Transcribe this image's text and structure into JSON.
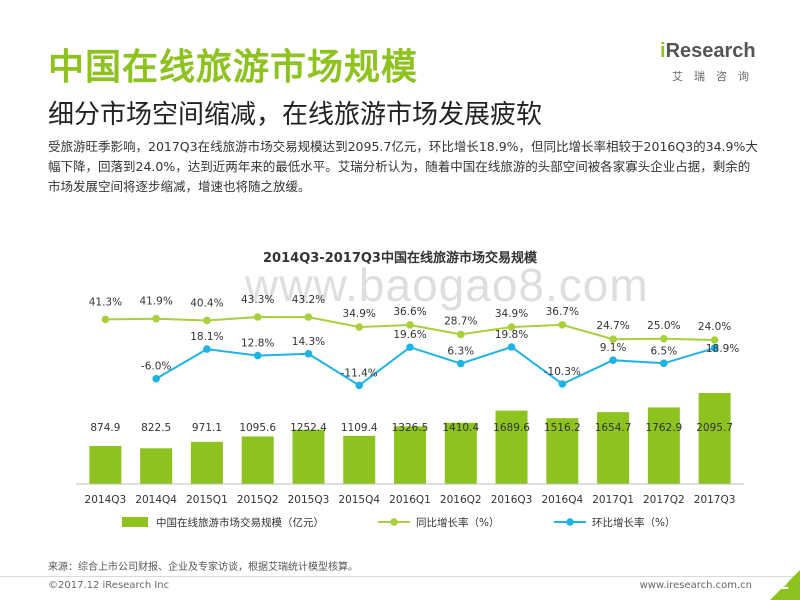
{
  "header": {
    "title": "中国在线旅游市场规模",
    "subtitle": "细分市场空间缩减，在线旅游市场发展疲软"
  },
  "body_text": "受旅游旺季影响，2017Q3在线旅游市场交易规模达到2095.7亿元，环比增长18.9%，但同比增长率相较于2016Q3的34.9%大幅下降，回落到24.0%，达到近两年来的最低水平。艾瑞分析认为，随着中国在线旅游的头部空间被各家寡头企业占据，剩余的市场发展空间将逐步缩减，增速也将随之放缓。",
  "logo": {
    "i": "i",
    "rest": "Research",
    "cn": "艾瑞咨询"
  },
  "watermark": "www.baogao8.com",
  "footer": {
    "source": "来源：综合上市公司财报、企业及专家访谈，根据艾瑞统计模型核算。",
    "copyright": "©2017.12 iResearch Inc",
    "website": "www.iresearch.com.cn",
    "page": "2"
  },
  "colors": {
    "bar": "#8dc21f",
    "yoy": "#a9cf3b",
    "qoq": "#1fb3e4",
    "brand": "#8dc21f"
  },
  "chart_data": {
    "type": "bar",
    "title": "2014Q3-2017Q3中国在线旅游市场交易规模",
    "categories": [
      "2014Q3",
      "2014Q4",
      "2015Q1",
      "2015Q2",
      "2015Q3",
      "2015Q4",
      "2016Q1",
      "2016Q2",
      "2016Q3",
      "2016Q4",
      "2017Q1",
      "2017Q2",
      "2017Q3"
    ],
    "series": [
      {
        "name": "中国在线旅游市场交易规模（亿元）",
        "kind": "bar",
        "values": [
          874.9,
          822.5,
          971.1,
          1095.6,
          1252.4,
          1109.4,
          1326.5,
          1410.4,
          1689.6,
          1516.2,
          1654.7,
          1762.9,
          2095.7
        ],
        "labels": [
          "874.9",
          "822.5",
          "971.1",
          "1095.6",
          "1252.4",
          "1109.4",
          "1326.5",
          "1410.4",
          "1689.6",
          "1516.2",
          "1654.7",
          "1762.9",
          "2095.7"
        ]
      },
      {
        "name": "同比增长率（%）",
        "kind": "line",
        "values": [
          41.3,
          41.9,
          40.4,
          43.3,
          43.2,
          34.9,
          36.6,
          28.7,
          34.9,
          36.7,
          24.7,
          25.0,
          24.0
        ],
        "labels": [
          "41.3%",
          "41.9%",
          "40.4%",
          "43.3%",
          "43.2%",
          "34.9%",
          "36.6%",
          "28.7%",
          "34.9%",
          "36.7%",
          "24.7%",
          "25.0%",
          "24.0%"
        ]
      },
      {
        "name": "环比增长率（%）",
        "kind": "line",
        "values": [
          null,
          -6.0,
          18.1,
          12.8,
          14.3,
          -11.4,
          19.6,
          6.3,
          19.8,
          -10.3,
          9.1,
          6.5,
          18.9
        ],
        "labels": [
          "",
          "-6.0%",
          "18.1%",
          "12.8%",
          "14.3%",
          "-11.4%",
          "19.6%",
          "6.3%",
          "19.8%",
          "-10.3%",
          "9.1%",
          "6.5%",
          "18.9%"
        ]
      }
    ],
    "legend_position": "bottom",
    "grid": false
  }
}
